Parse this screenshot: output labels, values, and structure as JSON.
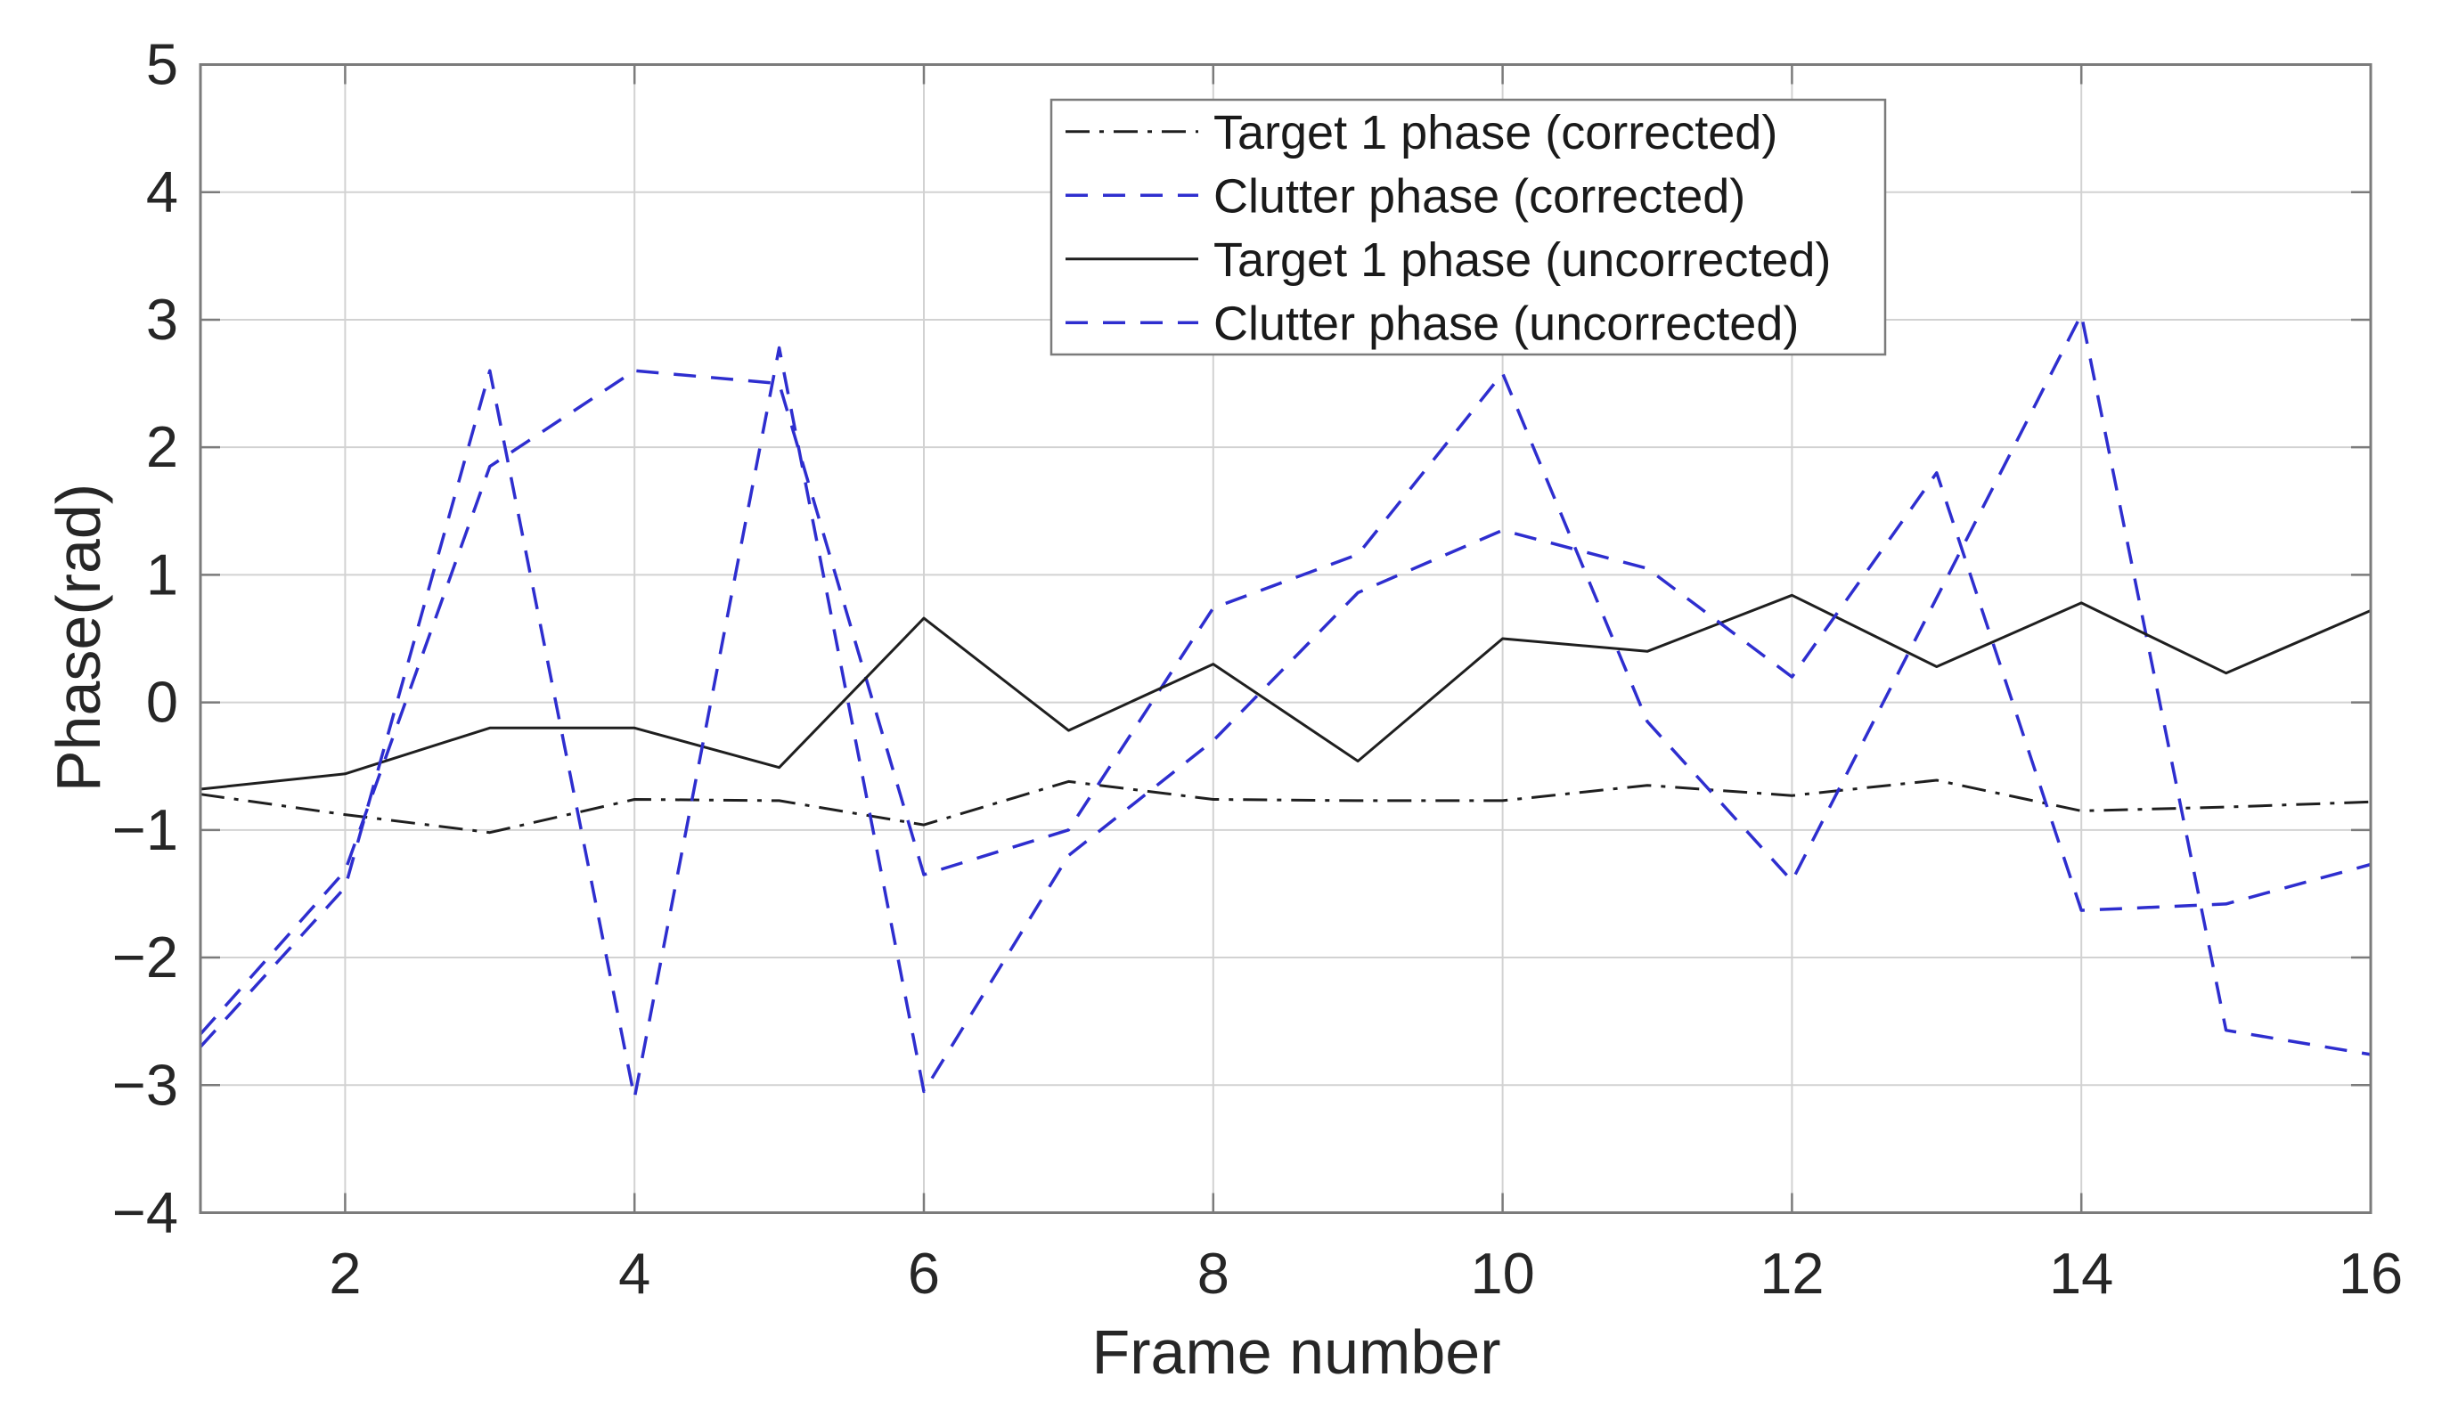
{
  "figure": {
    "background": "#ffffff",
    "plot_bg": "#ffffff"
  },
  "axis": {
    "x_tick_values": [
      2,
      4,
      6,
      8,
      10,
      12,
      14,
      16
    ],
    "x_tick_labels": [
      "2",
      "4",
      "6",
      "8",
      "10",
      "12",
      "14",
      "16"
    ],
    "y_tick_values": [
      5,
      4,
      3,
      2,
      1,
      0,
      -1,
      -2,
      -3,
      -4
    ],
    "y_tick_labels": [
      "5",
      "4",
      "3",
      "2",
      "1",
      "0",
      "−1",
      "−2",
      "−3",
      "−4"
    ],
    "grid_color": "#d2d2d2",
    "border_color": "#7b7b7b",
    "tick_label_color": "#262626"
  },
  "legend": {
    "entries": [
      {
        "series_index": 0
      },
      {
        "series_index": 1
      },
      {
        "series_index": 2
      },
      {
        "series_index": 3
      }
    ],
    "border_color": "#7b7b7b",
    "background": "#ffffff"
  },
  "chart_data": {
    "type": "line",
    "title": "",
    "xlabel": "Frame number",
    "ylabel": "Phase(rad)",
    "xlim": [
      1,
      16
    ],
    "ylim": [
      -4,
      5
    ],
    "grid": true,
    "legend_position": "upper center-right inside",
    "x": [
      1,
      2,
      3,
      4,
      5,
      6,
      7,
      8,
      9,
      10,
      11,
      12,
      13,
      14,
      15,
      16
    ],
    "series": [
      {
        "name": "Target 1 phase (corrected)",
        "color": "#1f1f1f",
        "style": "dashdot",
        "width": 3,
        "values": [
          -0.72,
          -0.88,
          -1.02,
          -0.76,
          -0.77,
          -0.96,
          -0.62,
          -0.76,
          -0.77,
          -0.77,
          -0.65,
          -0.73,
          -0.61,
          -0.85,
          -0.82,
          -0.78
        ]
      },
      {
        "name": "Clutter phase (corrected)",
        "color": "#2E2ECF",
        "style": "dashed",
        "width": 3.5,
        "values": [
          -2.6,
          -1.32,
          1.85,
          2.6,
          2.5,
          -1.35,
          -1.0,
          0.74,
          1.16,
          2.58,
          -0.15,
          -1.4,
          0.82,
          3.04,
          -2.57,
          -2.76
        ]
      },
      {
        "name": "Target 1 phase (uncorrected)",
        "color": "#1f1f1f",
        "style": "solid",
        "width": 3,
        "values": [
          -0.68,
          -0.56,
          -0.2,
          -0.2,
          -0.51,
          0.66,
          -0.22,
          0.3,
          -0.46,
          0.5,
          0.4,
          0.84,
          0.28,
          0.78,
          0.23,
          0.72
        ]
      },
      {
        "name": "Clutter phase (uncorrected)",
        "color": "#2E2ECF",
        "style": "dashed",
        "width": 3.5,
        "values": [
          -2.7,
          -1.45,
          2.6,
          -3.1,
          2.78,
          -3.05,
          -1.2,
          -0.3,
          0.86,
          1.35,
          1.05,
          0.2,
          1.8,
          -1.63,
          -1.58,
          -1.27
        ]
      }
    ]
  }
}
